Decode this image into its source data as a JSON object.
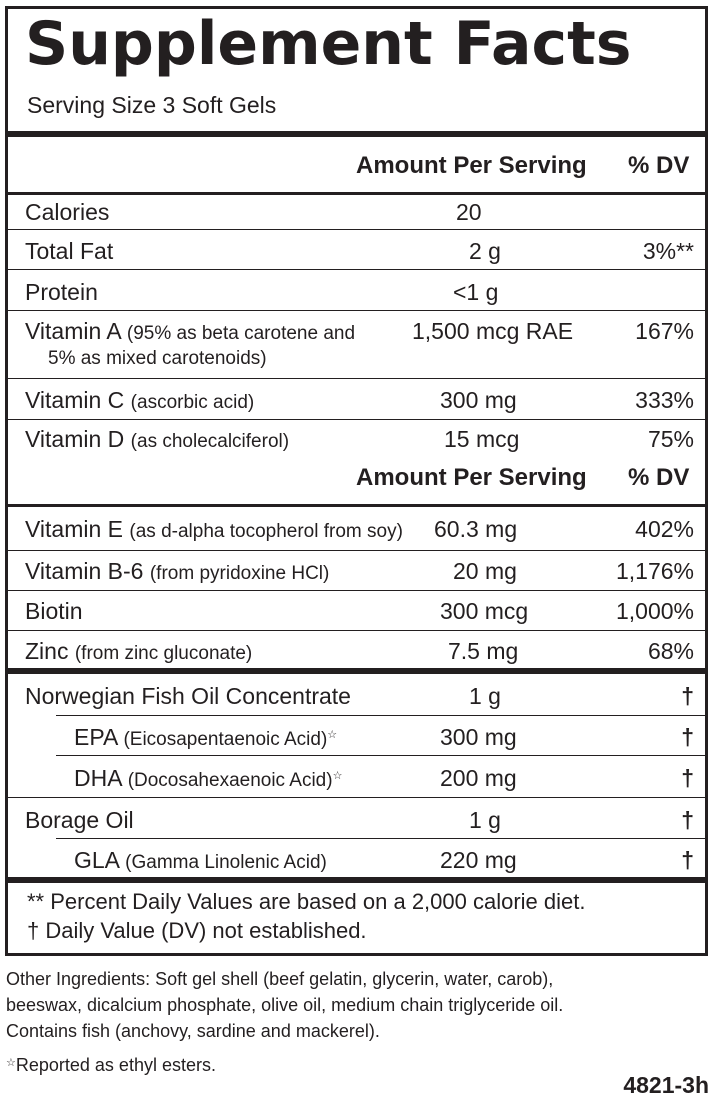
{
  "title": "Supplement Facts",
  "serving_size": "Serving Size 3 Soft Gels",
  "header": {
    "amount": "Amount Per Serving",
    "dv": "% DV"
  },
  "rows": [
    {
      "name": "Calories",
      "sub": "",
      "amount": "20",
      "dv": ""
    },
    {
      "name": "Total Fat",
      "sub": "",
      "amount": "2 g",
      "dv": "3%**"
    },
    {
      "name": "Protein",
      "sub": "",
      "amount": "<1 g",
      "dv": ""
    },
    {
      "name": "Vitamin A",
      "sub": "(95% as beta carotene and",
      "sub2": "5% as mixed carotenoids)",
      "amount": "1,500 mcg RAE",
      "dv": "167%"
    },
    {
      "name": "Vitamin C",
      "sub": "(ascorbic acid)",
      "amount": "300 mg",
      "dv": "333%"
    },
    {
      "name": "Vitamin D",
      "sub": "(as cholecalciferol)",
      "amount": "15 mcg",
      "dv": "75%"
    },
    {
      "name": "Vitamin E",
      "sub": "(as d-alpha tocopherol from soy)",
      "amount": "60.3 mg",
      "dv": "402%"
    },
    {
      "name": "Vitamin B-6",
      "sub": "(from pyridoxine HCl)",
      "amount": "20 mg",
      "dv": "1,176%"
    },
    {
      "name": "Biotin",
      "sub": "",
      "amount": "300 mcg",
      "dv": "1,000%"
    },
    {
      "name": "Zinc",
      "sub": "(from zinc gluconate)",
      "amount": "7.5 mg",
      "dv": "68%"
    },
    {
      "name": "Norwegian Fish Oil Concentrate",
      "sub": "",
      "amount": "1 g",
      "dv": "†"
    },
    {
      "name": "EPA",
      "sub": "(Eicosapentaenoic Acid)",
      "mark": "☆",
      "amount": "300 mg",
      "dv": "†"
    },
    {
      "name": "DHA",
      "sub": "(Docosahexaenoic Acid)",
      "mark": "☆",
      "amount": "200 mg",
      "dv": "†"
    },
    {
      "name": "Borage Oil",
      "sub": "",
      "amount": "1 g",
      "dv": "†"
    },
    {
      "name": "GLA",
      "sub": "(Gamma Linolenic Acid)",
      "amount": "220 mg",
      "dv": "†"
    }
  ],
  "footnotes": {
    "percent": "** Percent Daily Values are based on a 2,000 calorie diet.",
    "dagger": "† Daily Value (DV) not established."
  },
  "other_ingredients": {
    "line1": "Other Ingredients: Soft gel shell (beef gelatin, glycerin, water, carob),",
    "line2": "beeswax, dicalcium phosphate, olive oil, medium chain triglyceride oil.",
    "line3": "Contains fish (anchovy, sardine and mackerel).",
    "ester_mark": "☆",
    "ester_note": "Reported as ethyl esters."
  },
  "code": "4821-3h"
}
